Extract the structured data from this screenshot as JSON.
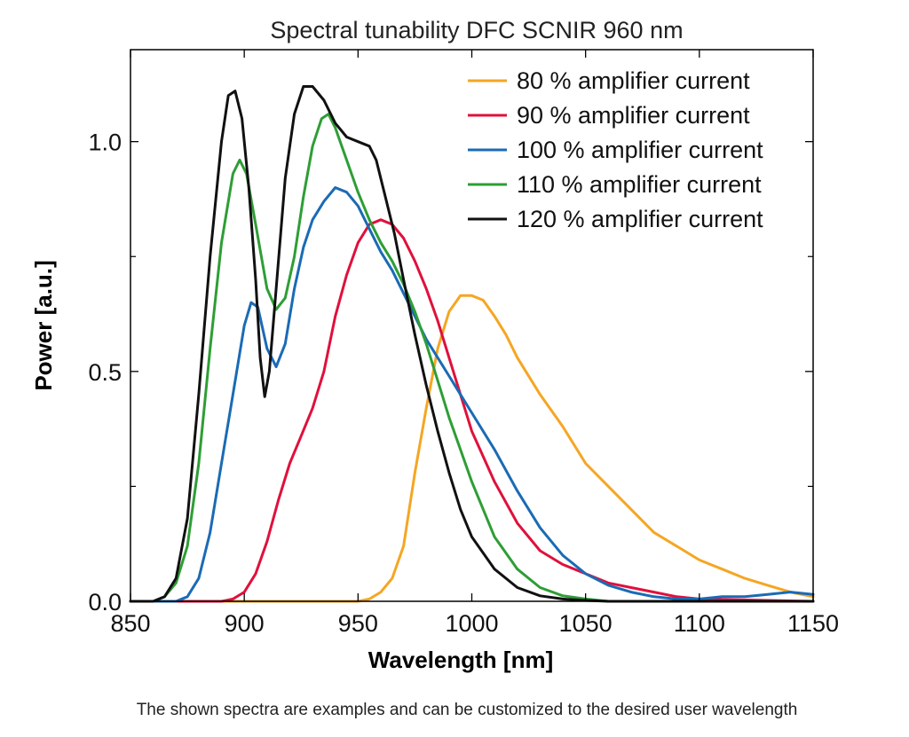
{
  "caption": "The shown spectra are examples and can be customized to the desired user wavelength",
  "chart_data": {
    "type": "line",
    "title": "Spectral tunability DFC SCNIR 960 nm",
    "xlabel": "Wavelength [nm]",
    "ylabel": "Power [a.u.]",
    "xlim": [
      850,
      1150
    ],
    "ylim": [
      0,
      1.2
    ],
    "xticks": [
      850,
      900,
      950,
      1000,
      1050,
      1100,
      1150
    ],
    "xtick_labels": [
      "850",
      "900",
      "950",
      "1000",
      "1050",
      "1100",
      "1150"
    ],
    "yticks": [
      0,
      0.5,
      1.0
    ],
    "ytick_labels": [
      "0.0",
      "0.5",
      "1.0"
    ],
    "yminor_ticks": [
      0.25,
      0.75
    ],
    "grid": false,
    "legend_position": "top-right",
    "series": [
      {
        "name": "80 % amplifier current",
        "color": "#F5A623",
        "points": [
          [
            850,
            0
          ],
          [
            950,
            0
          ],
          [
            955,
            0.005
          ],
          [
            960,
            0.02
          ],
          [
            965,
            0.05
          ],
          [
            970,
            0.12
          ],
          [
            975,
            0.28
          ],
          [
            980,
            0.42
          ],
          [
            985,
            0.55
          ],
          [
            990,
            0.63
          ],
          [
            995,
            0.665
          ],
          [
            1000,
            0.665
          ],
          [
            1005,
            0.655
          ],
          [
            1010,
            0.62
          ],
          [
            1015,
            0.58
          ],
          [
            1020,
            0.53
          ],
          [
            1030,
            0.45
          ],
          [
            1040,
            0.38
          ],
          [
            1050,
            0.3
          ],
          [
            1060,
            0.25
          ],
          [
            1070,
            0.2
          ],
          [
            1080,
            0.15
          ],
          [
            1090,
            0.12
          ],
          [
            1100,
            0.09
          ],
          [
            1110,
            0.07
          ],
          [
            1120,
            0.05
          ],
          [
            1130,
            0.035
          ],
          [
            1140,
            0.02
          ],
          [
            1150,
            0.01
          ]
        ]
      },
      {
        "name": "90 % amplifier current",
        "color": "#E0103C",
        "points": [
          [
            850,
            0
          ],
          [
            890,
            0
          ],
          [
            895,
            0.005
          ],
          [
            900,
            0.02
          ],
          [
            905,
            0.06
          ],
          [
            910,
            0.13
          ],
          [
            915,
            0.22
          ],
          [
            920,
            0.3
          ],
          [
            925,
            0.36
          ],
          [
            930,
            0.42
          ],
          [
            935,
            0.5
          ],
          [
            940,
            0.62
          ],
          [
            945,
            0.71
          ],
          [
            950,
            0.78
          ],
          [
            955,
            0.82
          ],
          [
            960,
            0.83
          ],
          [
            965,
            0.82
          ],
          [
            970,
            0.79
          ],
          [
            975,
            0.74
          ],
          [
            980,
            0.68
          ],
          [
            985,
            0.61
          ],
          [
            990,
            0.53
          ],
          [
            995,
            0.45
          ],
          [
            1000,
            0.37
          ],
          [
            1010,
            0.26
          ],
          [
            1020,
            0.17
          ],
          [
            1030,
            0.11
          ],
          [
            1040,
            0.08
          ],
          [
            1050,
            0.06
          ],
          [
            1060,
            0.04
          ],
          [
            1070,
            0.03
          ],
          [
            1080,
            0.02
          ],
          [
            1090,
            0.01
          ],
          [
            1100,
            0.005
          ],
          [
            1150,
            0
          ]
        ]
      },
      {
        "name": "100 % amplifier current",
        "color": "#1A6BB5",
        "points": [
          [
            850,
            0
          ],
          [
            870,
            0
          ],
          [
            875,
            0.01
          ],
          [
            880,
            0.05
          ],
          [
            885,
            0.15
          ],
          [
            890,
            0.3
          ],
          [
            895,
            0.45
          ],
          [
            900,
            0.6
          ],
          [
            903,
            0.65
          ],
          [
            906,
            0.64
          ],
          [
            910,
            0.55
          ],
          [
            914,
            0.51
          ],
          [
            918,
            0.56
          ],
          [
            922,
            0.68
          ],
          [
            926,
            0.77
          ],
          [
            930,
            0.83
          ],
          [
            935,
            0.87
          ],
          [
            940,
            0.9
          ],
          [
            945,
            0.89
          ],
          [
            950,
            0.86
          ],
          [
            955,
            0.81
          ],
          [
            960,
            0.76
          ],
          [
            965,
            0.72
          ],
          [
            970,
            0.67
          ],
          [
            975,
            0.62
          ],
          [
            980,
            0.57
          ],
          [
            985,
            0.53
          ],
          [
            990,
            0.49
          ],
          [
            995,
            0.45
          ],
          [
            1000,
            0.41
          ],
          [
            1010,
            0.33
          ],
          [
            1020,
            0.24
          ],
          [
            1030,
            0.16
          ],
          [
            1040,
            0.1
          ],
          [
            1050,
            0.06
          ],
          [
            1060,
            0.035
          ],
          [
            1070,
            0.02
          ],
          [
            1080,
            0.01
          ],
          [
            1090,
            0.005
          ],
          [
            1100,
            0.005
          ],
          [
            1110,
            0.01
          ],
          [
            1120,
            0.01
          ],
          [
            1130,
            0.015
          ],
          [
            1140,
            0.02
          ],
          [
            1150,
            0.015
          ]
        ]
      },
      {
        "name": "110 % amplifier current",
        "color": "#2E9E35",
        "points": [
          [
            850,
            0
          ],
          [
            860,
            0
          ],
          [
            865,
            0.01
          ],
          [
            870,
            0.04
          ],
          [
            875,
            0.12
          ],
          [
            880,
            0.3
          ],
          [
            885,
            0.55
          ],
          [
            890,
            0.78
          ],
          [
            895,
            0.93
          ],
          [
            898,
            0.96
          ],
          [
            901,
            0.93
          ],
          [
            905,
            0.82
          ],
          [
            910,
            0.68
          ],
          [
            914,
            0.635
          ],
          [
            918,
            0.66
          ],
          [
            922,
            0.75
          ],
          [
            926,
            0.88
          ],
          [
            930,
            0.99
          ],
          [
            934,
            1.05
          ],
          [
            937,
            1.06
          ],
          [
            940,
            1.03
          ],
          [
            945,
            0.96
          ],
          [
            950,
            0.89
          ],
          [
            955,
            0.83
          ],
          [
            960,
            0.78
          ],
          [
            965,
            0.74
          ],
          [
            970,
            0.69
          ],
          [
            975,
            0.63
          ],
          [
            980,
            0.56
          ],
          [
            985,
            0.48
          ],
          [
            990,
            0.4
          ],
          [
            995,
            0.33
          ],
          [
            1000,
            0.26
          ],
          [
            1010,
            0.14
          ],
          [
            1020,
            0.07
          ],
          [
            1030,
            0.03
          ],
          [
            1040,
            0.012
          ],
          [
            1050,
            0.005
          ],
          [
            1060,
            0
          ],
          [
            1150,
            0
          ]
        ]
      },
      {
        "name": "120 % amplifier current",
        "color": "#111111",
        "points": [
          [
            850,
            0
          ],
          [
            860,
            0
          ],
          [
            865,
            0.01
          ],
          [
            870,
            0.05
          ],
          [
            875,
            0.18
          ],
          [
            880,
            0.45
          ],
          [
            885,
            0.75
          ],
          [
            890,
            1.0
          ],
          [
            893,
            1.1
          ],
          [
            896,
            1.11
          ],
          [
            899,
            1.05
          ],
          [
            902,
            0.9
          ],
          [
            905,
            0.7
          ],
          [
            907,
            0.53
          ],
          [
            909,
            0.445
          ],
          [
            911,
            0.5
          ],
          [
            914,
            0.68
          ],
          [
            918,
            0.92
          ],
          [
            922,
            1.06
          ],
          [
            926,
            1.12
          ],
          [
            930,
            1.12
          ],
          [
            935,
            1.09
          ],
          [
            940,
            1.04
          ],
          [
            945,
            1.01
          ],
          [
            950,
            1.0
          ],
          [
            955,
            0.99
          ],
          [
            958,
            0.96
          ],
          [
            962,
            0.88
          ],
          [
            966,
            0.8
          ],
          [
            970,
            0.7
          ],
          [
            975,
            0.58
          ],
          [
            980,
            0.47
          ],
          [
            985,
            0.37
          ],
          [
            990,
            0.28
          ],
          [
            995,
            0.2
          ],
          [
            1000,
            0.14
          ],
          [
            1010,
            0.07
          ],
          [
            1020,
            0.03
          ],
          [
            1030,
            0.012
          ],
          [
            1040,
            0.005
          ],
          [
            1050,
            0.002
          ],
          [
            1060,
            0
          ],
          [
            1150,
            0
          ]
        ]
      }
    ]
  }
}
